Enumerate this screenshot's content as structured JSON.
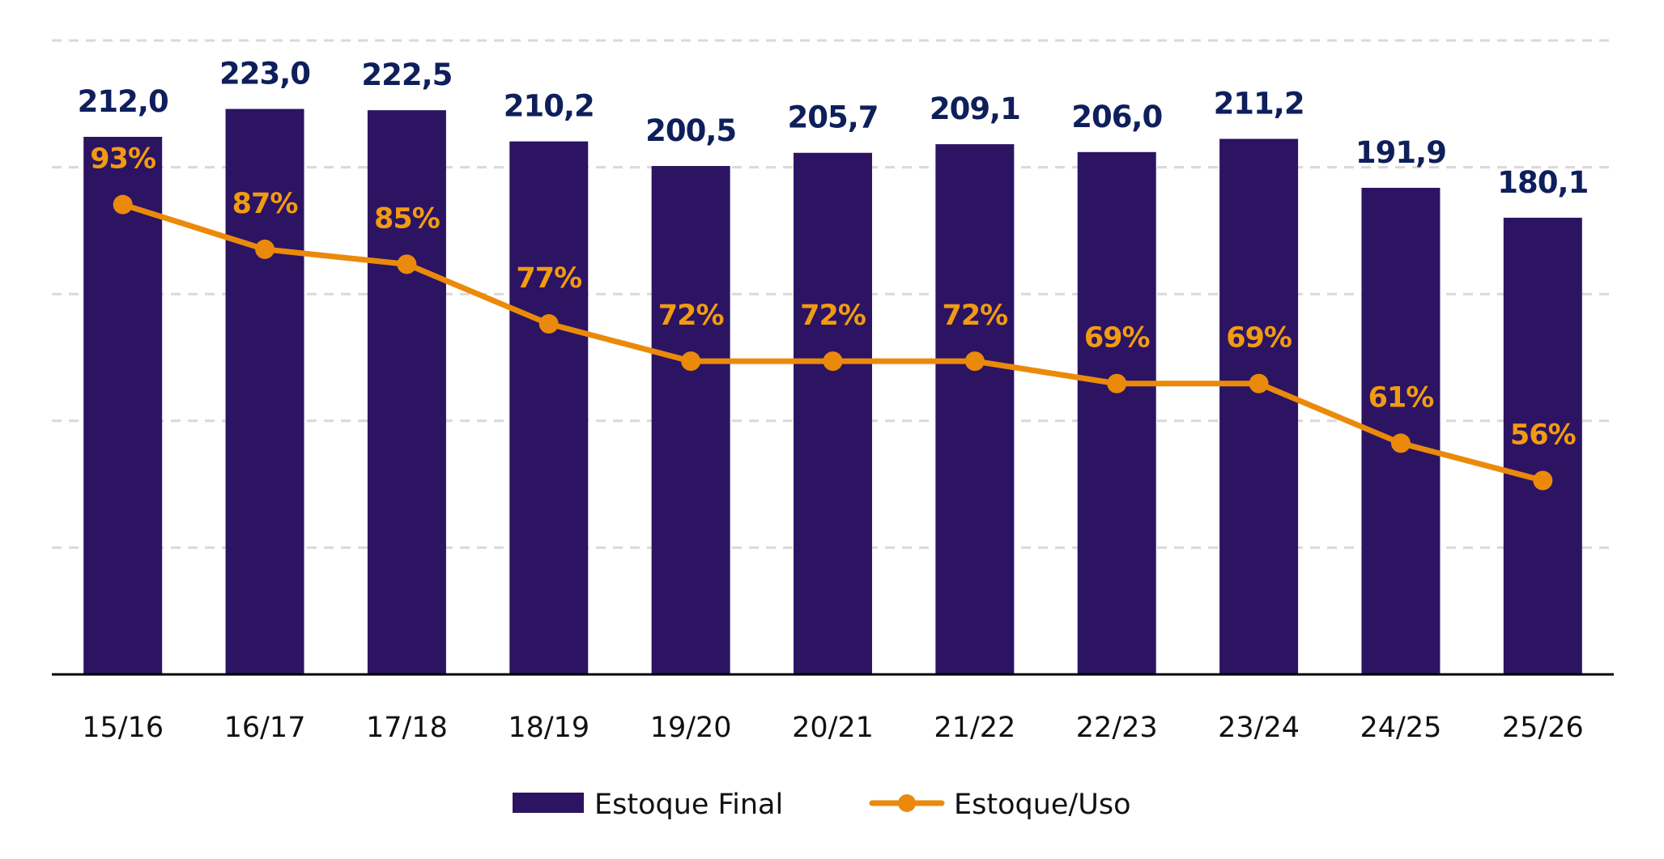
{
  "chart_data": {
    "type": "bar",
    "title": "",
    "xlabel": "",
    "ylabel": "",
    "categories": [
      "15/16",
      "16/17",
      "17/18",
      "18/19",
      "19/20",
      "20/21",
      "21/22",
      "22/23",
      "23/24",
      "24/25",
      "25/26"
    ],
    "series": [
      {
        "name": "Estoque Final",
        "type": "bar",
        "axis": "primary",
        "color": "#2c1462",
        "values": [
          212.0,
          223.0,
          222.5,
          210.2,
          200.5,
          205.7,
          209.1,
          206.0,
          211.2,
          191.9,
          180.1
        ],
        "labels": [
          "212,0",
          "223,0",
          "222,5",
          "210,2",
          "200,5",
          "205,7",
          "209,1",
          "206,0",
          "211,2",
          "191,9",
          "180,1"
        ],
        "label_color": "#0e1f5b"
      },
      {
        "name": "Estoque/Uso",
        "type": "line",
        "axis": "secondary",
        "color": "#eb8a0a",
        "values": [
          93,
          87,
          85,
          77,
          72,
          72,
          72,
          69,
          69,
          61,
          56
        ],
        "labels": [
          "93%",
          "87%",
          "85%",
          "77%",
          "72%",
          "72%",
          "72%",
          "69%",
          "69%",
          "61%",
          "56%"
        ],
        "label_color": "#f29b12",
        "unit": "%"
      }
    ],
    "ylim": [
      0,
      250
    ],
    "y_gridlines": [
      50,
      100,
      150,
      200,
      250
    ],
    "y2lim": [
      30,
      115
    ],
    "grid": true,
    "grid_style": "dashed",
    "y_tick_labels_visible": false,
    "legend": {
      "position": "bottom-center",
      "entries": [
        {
          "label": "Estoque Final",
          "symbol": "square",
          "color": "#2c1462"
        },
        {
          "label": "Estoque/Uso",
          "symbol": "line-marker",
          "color": "#eb8a0a"
        }
      ]
    }
  }
}
